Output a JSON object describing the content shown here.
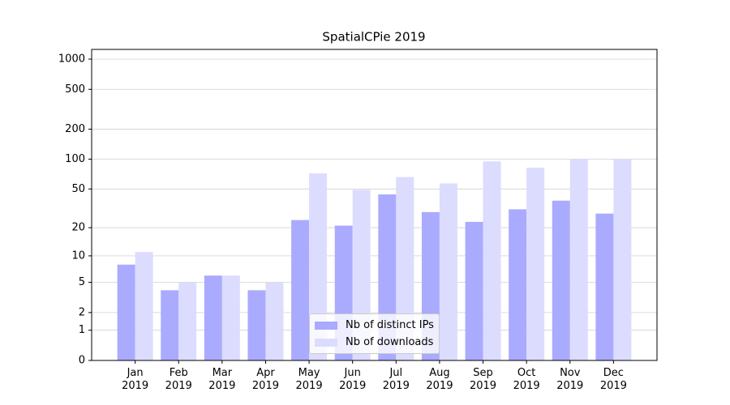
{
  "chart_data": {
    "type": "bar",
    "title": "SpatialCPie 2019",
    "categories": [
      "Jan\n2019",
      "Feb\n2019",
      "Mar\n2019",
      "Apr\n2019",
      "May\n2019",
      "Jun\n2019",
      "Jul\n2019",
      "Aug\n2019",
      "Sep\n2019",
      "Oct\n2019",
      "Nov\n2019",
      "Dec\n2019"
    ],
    "series": [
      {
        "name": "Nb of distinct IPs",
        "color": "#aaaaff",
        "values": [
          8,
          4,
          6,
          4,
          24,
          21,
          44,
          29,
          23,
          31,
          38,
          28
        ]
      },
      {
        "name": "Nb of downloads",
        "color": "#dcdcff",
        "values": [
          11,
          5,
          6,
          5,
          72,
          49,
          66,
          57,
          95,
          82,
          100,
          100
        ]
      }
    ],
    "y_scale": "log1p",
    "ylim": [
      0,
      1250
    ],
    "yticks": [
      0,
      1,
      2,
      5,
      10,
      20,
      50,
      100,
      200,
      500,
      1000
    ],
    "grid": true,
    "legend": "lower center"
  }
}
